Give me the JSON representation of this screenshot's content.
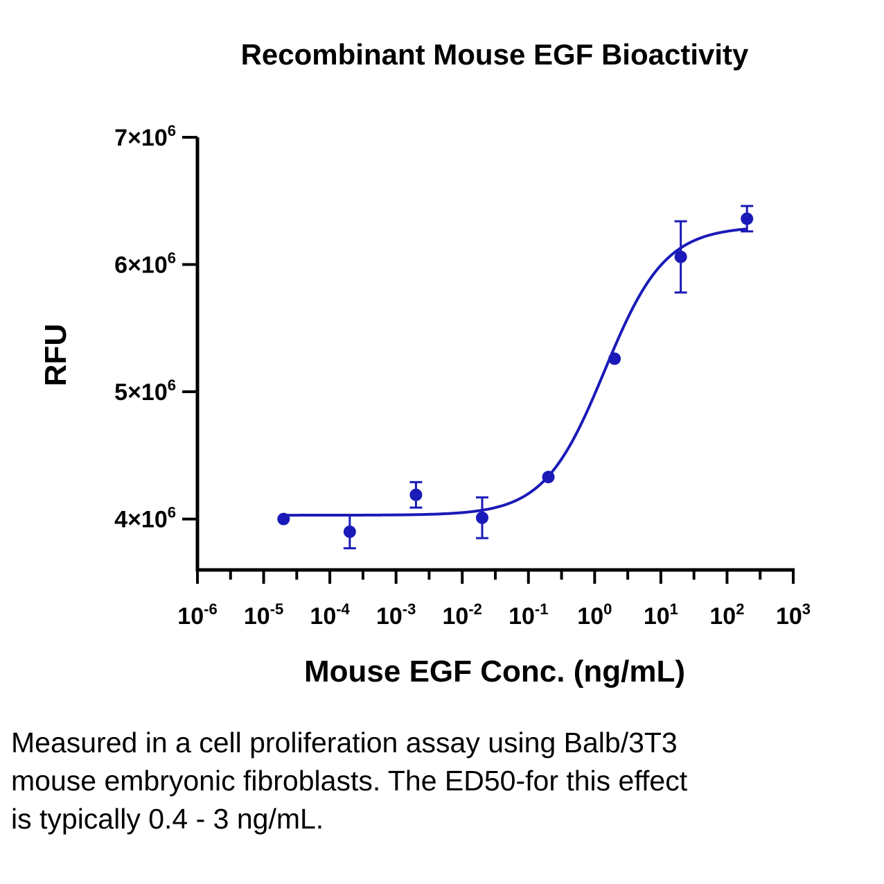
{
  "chart_data": {
    "type": "scatter",
    "title": "Recombinant Mouse EGF Bioactivity",
    "xlabel": "Mouse EGF Conc. (ng/mL)",
    "ylabel": "RFU",
    "x_scale": "log",
    "xlim": [
      1e-06,
      1000
    ],
    "ylim": [
      3600000,
      7000000
    ],
    "x_ticks": [
      {
        "base": "10",
        "exp": "-6"
      },
      {
        "base": "10",
        "exp": "-5"
      },
      {
        "base": "10",
        "exp": "-4"
      },
      {
        "base": "10",
        "exp": "-3"
      },
      {
        "base": "10",
        "exp": "-2"
      },
      {
        "base": "10",
        "exp": "-1"
      },
      {
        "base": "10",
        "exp": "0"
      },
      {
        "base": "10",
        "exp": "1"
      },
      {
        "base": "10",
        "exp": "2"
      },
      {
        "base": "10",
        "exp": "3"
      }
    ],
    "y_ticks": [
      {
        "value": 4000000,
        "base": "4×10",
        "exp": "6"
      },
      {
        "value": 5000000,
        "base": "5×10",
        "exp": "6"
      },
      {
        "value": 6000000,
        "base": "6×10",
        "exp": "6"
      },
      {
        "value": 7000000,
        "base": "7×10",
        "exp": "6"
      }
    ],
    "grid": false,
    "color": "#1a1ab8",
    "series": [
      {
        "points": [
          {
            "x": 2e-05,
            "y": 4000000,
            "err": 0
          },
          {
            "x": 0.0002,
            "y": 3900000,
            "err": 130000
          },
          {
            "x": 0.002,
            "y": 4190000,
            "err": 100000
          },
          {
            "x": 0.02,
            "y": 4010000,
            "err": 160000
          },
          {
            "x": 0.2,
            "y": 4330000,
            "err": 0
          },
          {
            "x": 2,
            "y": 5260000,
            "err": 0
          },
          {
            "x": 20,
            "y": 6060000,
            "err": 280000
          },
          {
            "x": 200,
            "y": 6360000,
            "err": 100000
          }
        ],
        "fit": {
          "bottom": 4030000,
          "top": 6300000,
          "log_ec50": 0.15,
          "hill": 0.95
        }
      }
    ]
  },
  "caption": "Measured in a cell proliferation assay using Balb/3T3 mouse embryonic fibroblasts. The ED50-for this effect is typically 0.4 - 3 ng/mL."
}
